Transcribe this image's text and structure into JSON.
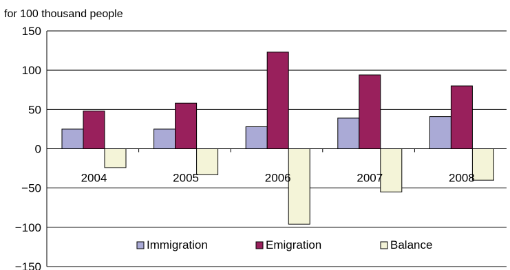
{
  "chart_data": {
    "type": "bar",
    "unit_label": "for 100 thousand people",
    "categories": [
      "2004",
      "2005",
      "2006",
      "2007",
      "2008"
    ],
    "series": [
      {
        "name": "Immigration",
        "color": "#aaaad6",
        "values": [
          25,
          25,
          28,
          39,
          41
        ]
      },
      {
        "name": "Emigration",
        "color": "#99205c",
        "values": [
          48,
          58,
          123,
          94,
          80
        ]
      },
      {
        "name": "Balance",
        "color": "#f4f4d8",
        "values": [
          -24,
          -33,
          -96,
          -55,
          -40
        ]
      }
    ],
    "ylim": [
      -150,
      150
    ],
    "yticks": [
      {
        "value": 150,
        "label": "150"
      },
      {
        "value": 100,
        "label": "100"
      },
      {
        "value": 50,
        "label": "50"
      },
      {
        "value": 0,
        "label": "0"
      },
      {
        "value": -50,
        "label": "−50"
      },
      {
        "value": -100,
        "label": "−100"
      },
      {
        "value": -150,
        "label": "−150"
      }
    ],
    "grid": true,
    "legend_position": "bottom-inside"
  }
}
